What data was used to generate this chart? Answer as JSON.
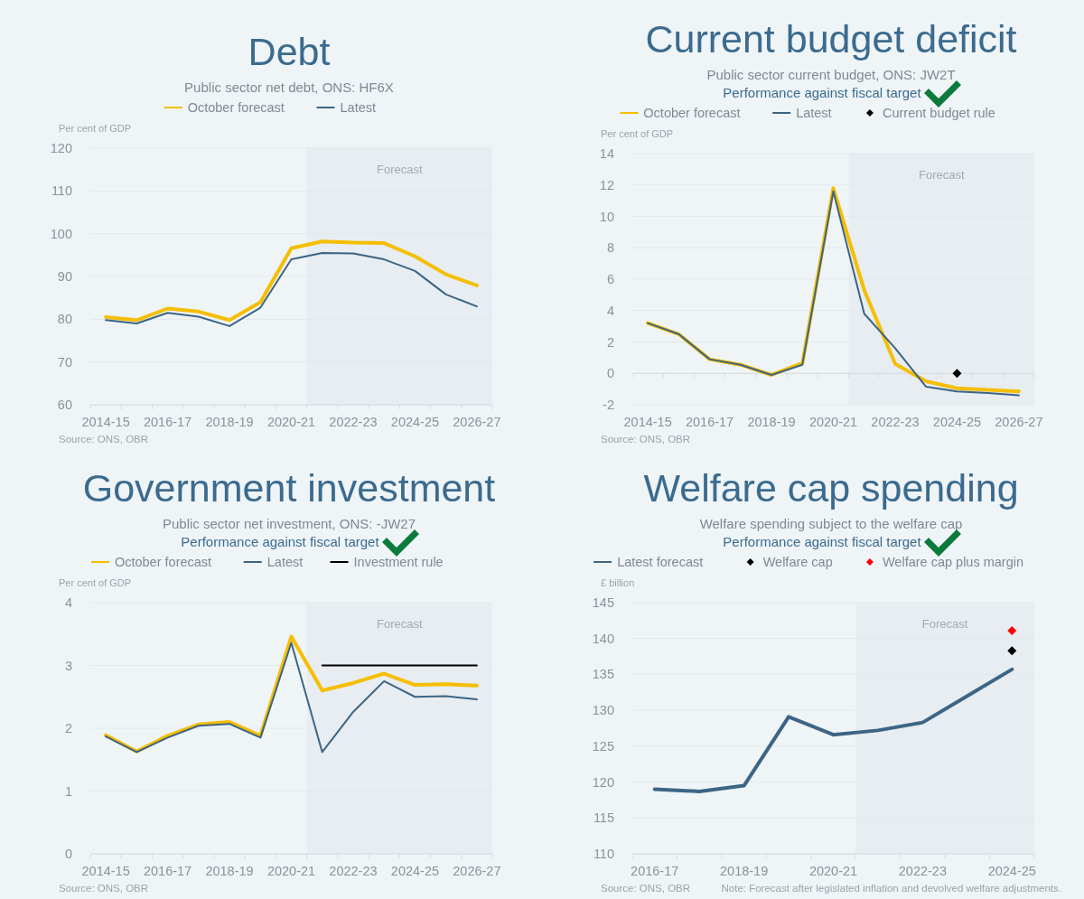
{
  "chart_data": [
    {
      "type": "line",
      "title": "Debt",
      "subtitle": "Public sector net debt, ONS: HF6X",
      "ylabel": "Per cent of GDP",
      "categories": [
        "2014-15",
        null,
        "2016-17",
        null,
        "2018-19",
        null,
        "2020-21",
        null,
        "2022-23",
        null,
        "2024-25",
        null,
        "2026-27"
      ],
      "series": [
        {
          "name": "October forecast",
          "color": "#f5be00",
          "values": [
            80.5,
            79.8,
            82.5,
            81.8,
            79.8,
            84.0,
            96.6,
            98.2,
            97.9,
            97.8,
            94.7,
            90.5,
            87.9
          ]
        },
        {
          "name": "Latest",
          "color": "#3c6585",
          "values": [
            79.8,
            79.0,
            81.5,
            80.6,
            78.4,
            82.7,
            94.0,
            95.5,
            95.4,
            94.0,
            91.3,
            85.8,
            83.0
          ]
        }
      ],
      "ylim": [
        60,
        120
      ],
      "yticks": [
        60,
        70,
        80,
        90,
        100,
        110,
        120
      ],
      "grid": "y",
      "legend": "top",
      "marker": "none",
      "line_style": "solid",
      "annotations": [
        "Forecast",
        "Source: ONS, OBR"
      ]
    },
    {
      "type": "line",
      "title": "Current budget deficit",
      "subtitle": "Public sector current budget, ONS: JW2T",
      "ylabel": "Per cent of GDP",
      "categories": [
        "2014-15",
        null,
        "2016-17",
        null,
        "2018-19",
        null,
        "2020-21",
        null,
        "2022-23",
        null,
        "2024-25",
        null,
        "2026-27"
      ],
      "series": [
        {
          "name": "October forecast",
          "color": "#f5be00",
          "values": [
            3.2,
            2.5,
            0.9,
            0.55,
            -0.1,
            0.65,
            11.8,
            5.3,
            0.6,
            -0.5,
            -0.95,
            -1.05,
            -1.15
          ]
        },
        {
          "name": "Latest",
          "color": "#3c6585",
          "values": [
            3.2,
            2.5,
            0.9,
            0.55,
            -0.1,
            0.55,
            11.6,
            3.8,
            1.6,
            -0.85,
            -1.15,
            -1.25,
            -1.4
          ]
        },
        {
          "name": "Current budget rule",
          "type": "scatter",
          "color": "#000000",
          "x": [
            "2024-25"
          ],
          "values": [
            0
          ],
          "marker": "diamond"
        }
      ],
      "ylim": [
        -2,
        14
      ],
      "yticks": [
        -2,
        0,
        2,
        4,
        6,
        8,
        10,
        12,
        14
      ],
      "grid": "y",
      "legend": "top",
      "marker": "none",
      "line_style": "solid",
      "annotations": [
        "Forecast",
        "Performance against fiscal target",
        "Source: ONS, OBR"
      ]
    },
    {
      "type": "line",
      "title": "Government investment",
      "subtitle": "Public sector net investment, ONS: -JW27",
      "ylabel": "Per cent of GDP",
      "categories": [
        "2014-15",
        null,
        "2016-17",
        null,
        "2018-19",
        null,
        "2020-21",
        null,
        "2022-23",
        null,
        "2024-25",
        null,
        "2026-27"
      ],
      "series": [
        {
          "name": "October forecast",
          "color": "#f5be00",
          "values": [
            1.89,
            1.63,
            1.88,
            2.06,
            2.1,
            1.88,
            3.46,
            2.6,
            2.72,
            2.87,
            2.69,
            2.7,
            2.68
          ]
        },
        {
          "name": "Latest",
          "color": "#3c6585",
          "values": [
            1.87,
            1.62,
            1.85,
            2.04,
            2.07,
            1.85,
            3.36,
            1.62,
            2.26,
            2.75,
            2.5,
            2.51,
            2.46
          ]
        },
        {
          "name": "Investment rule",
          "color": "#000000",
          "values": [
            null,
            null,
            null,
            null,
            null,
            null,
            null,
            3,
            3,
            3,
            3,
            3,
            3
          ]
        }
      ],
      "ylim": [
        0,
        4
      ],
      "yticks": [
        0,
        1,
        2,
        3,
        4
      ],
      "grid": "y",
      "legend": "top",
      "marker": "none",
      "line_style": "solid",
      "annotations": [
        "Forecast",
        "Performance against fiscal target",
        "Source: ONS, OBR"
      ]
    },
    {
      "type": "line",
      "title": "Welfare cap spending",
      "subtitle": "Welfare spending subject to the welfare cap",
      "ylabel": "£ billion",
      "categories": [
        "2016-17",
        null,
        "2018-19",
        null,
        "2020-21",
        null,
        "2022-23",
        null,
        "2024-25"
      ],
      "series": [
        {
          "name": "Latest forecast",
          "color": "#3c6585",
          "values": [
            119.0,
            118.7,
            119.5,
            129.1,
            126.6,
            127.2,
            128.3,
            132.0,
            135.7
          ]
        },
        {
          "name": "Welfare cap",
          "type": "scatter",
          "color": "#000000",
          "x": [
            "2024-25"
          ],
          "values": [
            138.3
          ],
          "marker": "diamond"
        },
        {
          "name": "Welfare cap plus margin",
          "type": "scatter",
          "color": "#ff0000",
          "x": [
            "2024-25"
          ],
          "values": [
            141.1
          ],
          "marker": "diamond"
        }
      ],
      "ylim": [
        110,
        145
      ],
      "yticks": [
        110,
        115,
        120,
        125,
        130,
        135,
        140,
        145
      ],
      "grid": "y",
      "legend": "top",
      "marker": "none",
      "line_style": "solid",
      "annotations": [
        "Forecast",
        "Performance against fiscal target",
        "Source: ONS, OBR",
        "Note: Forecast after legislated inflation and devolved welfare adjustments."
      ]
    }
  ]
}
